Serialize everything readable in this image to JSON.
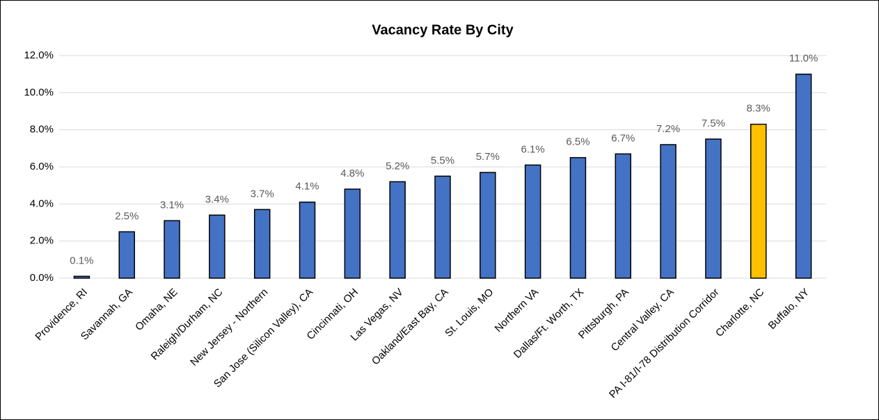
{
  "chart_data": {
    "type": "bar",
    "title": "Vacancy Rate By City",
    "categories": [
      "Providence, RI",
      "Savannah, GA",
      "Omaha, NE",
      "Raleigh/Durham, NC",
      "New Jersey - Northern",
      "San Jose (Silicon Valley), CA",
      "Cincinnati, OH",
      "Las Vegas, NV",
      "Oakland/East Bay, CA",
      "St. Louis, MO",
      "Northern VA",
      "Dallas/Ft. Worth, TX",
      "Pittsburgh, PA",
      "Central Valley, CA",
      "PA I-81/I-78 Distribution Corridor",
      "Charlotte, NC",
      "Buffalo, NY"
    ],
    "values": [
      0.1,
      2.5,
      3.1,
      3.4,
      3.7,
      4.1,
      4.8,
      5.2,
      5.5,
      5.7,
      6.1,
      6.5,
      6.7,
      7.2,
      7.5,
      8.3,
      11.0
    ],
    "value_labels": [
      "0.1%",
      "2.5%",
      "3.1%",
      "3.4%",
      "3.7%",
      "4.1%",
      "4.8%",
      "5.2%",
      "5.5%",
      "5.7%",
      "6.1%",
      "6.5%",
      "6.7%",
      "7.2%",
      "7.5%",
      "8.3%",
      "11.0%"
    ],
    "colors": [
      "#4472c4",
      "#4472c4",
      "#4472c4",
      "#4472c4",
      "#4472c4",
      "#4472c4",
      "#4472c4",
      "#4472c4",
      "#4472c4",
      "#4472c4",
      "#4472c4",
      "#4472c4",
      "#4472c4",
      "#4472c4",
      "#4472c4",
      "#ffc000",
      "#4472c4"
    ],
    "ylim": [
      0,
      12
    ],
    "yticks": [
      {
        "value": 0,
        "label": "0.0%"
      },
      {
        "value": 2,
        "label": "2.0%"
      },
      {
        "value": 4,
        "label": "4.0%"
      },
      {
        "value": 6,
        "label": "6.0%"
      },
      {
        "value": 8,
        "label": "8.0%"
      },
      {
        "value": 10,
        "label": "10.0%"
      },
      {
        "value": 12,
        "label": "12.0%"
      }
    ],
    "grid": true
  }
}
